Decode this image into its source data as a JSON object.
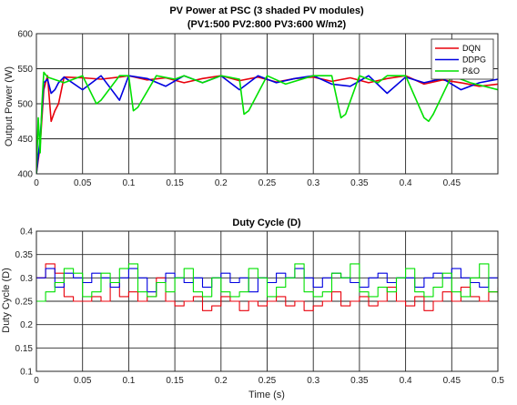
{
  "colors": {
    "dqn": "#e8000b",
    "ddpg": "#0000e0",
    "po": "#00e000",
    "grid": "#262626"
  },
  "chart_data": [
    {
      "type": "line",
      "title": "PV Power at PSC (3 shaded PV modules)",
      "subtitle": "(PV1:500 PV2:800 PV3:600 W/m2)",
      "xlabel": "",
      "ylabel": "Output Power (W)",
      "xlim": [
        0,
        0.5
      ],
      "ylim": [
        400,
        600
      ],
      "xticks": [
        "0",
        "0.05",
        "0.1",
        "0.15",
        "0.2",
        "0.25",
        "0.3",
        "0.35",
        "0.4",
        "0.45"
      ],
      "yticks": [
        "400",
        "450",
        "500",
        "550",
        "600"
      ],
      "grid": true,
      "legend": {
        "position": "top-right",
        "entries": [
          "DQN",
          "DDPG",
          "P&O"
        ]
      },
      "series": [
        {
          "name": "DQN",
          "color": "dqn",
          "x": [
            0,
            0.004,
            0.008,
            0.012,
            0.016,
            0.02,
            0.024,
            0.03,
            0.05,
            0.07,
            0.09,
            0.1,
            0.12,
            0.14,
            0.16,
            0.18,
            0.2,
            0.22,
            0.24,
            0.26,
            0.28,
            0.3,
            0.32,
            0.34,
            0.36,
            0.38,
            0.4,
            0.42,
            0.44,
            0.46,
            0.48,
            0.5
          ],
          "values": [
            400,
            440,
            520,
            540,
            475,
            490,
            500,
            538,
            537,
            535,
            538,
            540,
            534,
            537,
            530,
            536,
            540,
            533,
            538,
            531,
            536,
            538,
            532,
            537,
            530,
            536,
            540,
            528,
            534,
            530,
            525,
            528
          ]
        },
        {
          "name": "DDPG",
          "color": "ddpg",
          "x": [
            0,
            0.004,
            0.008,
            0.012,
            0.016,
            0.02,
            0.024,
            0.03,
            0.05,
            0.07,
            0.09,
            0.1,
            0.12,
            0.14,
            0.16,
            0.18,
            0.2,
            0.22,
            0.24,
            0.26,
            0.28,
            0.3,
            0.32,
            0.34,
            0.36,
            0.38,
            0.4,
            0.42,
            0.44,
            0.46,
            0.48,
            0.5
          ],
          "values": [
            400,
            450,
            530,
            535,
            515,
            520,
            530,
            538,
            520,
            540,
            505,
            540,
            536,
            525,
            540,
            530,
            540,
            520,
            540,
            530,
            536,
            540,
            528,
            525,
            540,
            515,
            538,
            530,
            536,
            520,
            530,
            535
          ]
        },
        {
          "name": "P&O",
          "color": "po",
          "x": [
            0,
            0.002,
            0.004,
            0.006,
            0.008,
            0.012,
            0.03,
            0.05,
            0.065,
            0.07,
            0.09,
            0.1,
            0.105,
            0.11,
            0.13,
            0.15,
            0.16,
            0.18,
            0.2,
            0.22,
            0.225,
            0.23,
            0.25,
            0.27,
            0.3,
            0.32,
            0.33,
            0.335,
            0.35,
            0.37,
            0.38,
            0.4,
            0.42,
            0.425,
            0.43,
            0.45,
            0.47,
            0.5
          ],
          "values": [
            400,
            480,
            430,
            500,
            545,
            538,
            530,
            540,
            500,
            505,
            540,
            540,
            490,
            495,
            540,
            535,
            540,
            530,
            540,
            535,
            485,
            490,
            540,
            528,
            540,
            540,
            480,
            485,
            540,
            530,
            540,
            540,
            480,
            475,
            485,
            540,
            530,
            520
          ]
        }
      ]
    },
    {
      "type": "line",
      "title": "Duty Cycle (D)",
      "xlabel": "Time (s)",
      "ylabel": "Duty Cycle (D)",
      "xlim": [
        0,
        0.5
      ],
      "ylim": [
        0.1,
        0.4
      ],
      "xticks": [
        "0",
        "0.05",
        "0.1",
        "0.15",
        "0.2",
        "0.25",
        "0.3",
        "0.35",
        "0.4",
        "0.45",
        "0.5"
      ],
      "yticks": [
        "0.1",
        "0.15",
        "0.2",
        "0.25",
        "0.3",
        "0.35",
        "0.4"
      ],
      "grid": true,
      "series": [
        {
          "name": "DQN",
          "color": "dqn",
          "x": [
            0,
            0.01,
            0.02,
            0.03,
            0.04,
            0.05,
            0.06,
            0.07,
            0.08,
            0.09,
            0.1,
            0.11,
            0.12,
            0.13,
            0.14,
            0.15,
            0.16,
            0.17,
            0.18,
            0.19,
            0.2,
            0.21,
            0.22,
            0.23,
            0.24,
            0.25,
            0.26,
            0.27,
            0.28,
            0.29,
            0.3,
            0.31,
            0.32,
            0.33,
            0.34,
            0.35,
            0.36,
            0.37,
            0.38,
            0.39,
            0.4,
            0.41,
            0.42,
            0.43,
            0.44,
            0.45,
            0.46,
            0.47,
            0.48,
            0.49,
            0.5
          ],
          "values": [
            0.3,
            0.33,
            0.31,
            0.26,
            0.25,
            0.25,
            0.26,
            0.25,
            0.29,
            0.26,
            0.27,
            0.25,
            0.26,
            0.3,
            0.25,
            0.24,
            0.25,
            0.26,
            0.23,
            0.24,
            0.26,
            0.25,
            0.23,
            0.25,
            0.24,
            0.25,
            0.26,
            0.24,
            0.25,
            0.23,
            0.24,
            0.25,
            0.27,
            0.24,
            0.25,
            0.26,
            0.24,
            0.25,
            0.28,
            0.25,
            0.24,
            0.26,
            0.23,
            0.25,
            0.27,
            0.25,
            0.28,
            0.26,
            0.25,
            0.27,
            0.28
          ]
        },
        {
          "name": "DDPG",
          "color": "ddpg",
          "x": [
            0,
            0.01,
            0.02,
            0.03,
            0.04,
            0.05,
            0.06,
            0.07,
            0.08,
            0.09,
            0.1,
            0.11,
            0.12,
            0.13,
            0.14,
            0.15,
            0.16,
            0.17,
            0.18,
            0.19,
            0.2,
            0.21,
            0.22,
            0.23,
            0.24,
            0.25,
            0.26,
            0.27,
            0.28,
            0.29,
            0.3,
            0.31,
            0.32,
            0.33,
            0.34,
            0.35,
            0.36,
            0.37,
            0.38,
            0.39,
            0.4,
            0.41,
            0.42,
            0.43,
            0.44,
            0.45,
            0.46,
            0.47,
            0.48,
            0.49,
            0.5
          ],
          "values": [
            0.3,
            0.32,
            0.28,
            0.31,
            0.3,
            0.29,
            0.31,
            0.3,
            0.28,
            0.3,
            0.32,
            0.3,
            0.27,
            0.29,
            0.31,
            0.3,
            0.29,
            0.3,
            0.28,
            0.3,
            0.31,
            0.29,
            0.3,
            0.27,
            0.3,
            0.29,
            0.31,
            0.3,
            0.32,
            0.3,
            0.28,
            0.3,
            0.31,
            0.3,
            0.29,
            0.28,
            0.3,
            0.31,
            0.29,
            0.3,
            0.3,
            0.28,
            0.3,
            0.31,
            0.3,
            0.32,
            0.3,
            0.29,
            0.28,
            0.3,
            0.3
          ]
        },
        {
          "name": "P&O",
          "color": "po",
          "x": [
            0,
            0.01,
            0.02,
            0.03,
            0.04,
            0.05,
            0.06,
            0.07,
            0.08,
            0.09,
            0.1,
            0.11,
            0.12,
            0.13,
            0.14,
            0.15,
            0.16,
            0.17,
            0.18,
            0.19,
            0.2,
            0.21,
            0.22,
            0.23,
            0.24,
            0.25,
            0.26,
            0.27,
            0.28,
            0.29,
            0.3,
            0.31,
            0.32,
            0.33,
            0.34,
            0.35,
            0.36,
            0.37,
            0.38,
            0.39,
            0.4,
            0.41,
            0.42,
            0.43,
            0.44,
            0.45,
            0.46,
            0.47,
            0.48,
            0.49,
            0.5
          ],
          "values": [
            0.25,
            0.27,
            0.29,
            0.32,
            0.31,
            0.26,
            0.27,
            0.31,
            0.29,
            0.32,
            0.33,
            0.27,
            0.26,
            0.29,
            0.27,
            0.3,
            0.32,
            0.27,
            0.26,
            0.3,
            0.27,
            0.26,
            0.27,
            0.32,
            0.3,
            0.26,
            0.28,
            0.3,
            0.33,
            0.27,
            0.26,
            0.27,
            0.31,
            0.3,
            0.33,
            0.27,
            0.26,
            0.28,
            0.27,
            0.3,
            0.32,
            0.27,
            0.26,
            0.28,
            0.31,
            0.27,
            0.26,
            0.3,
            0.33,
            0.27,
            0.26
          ]
        }
      ]
    }
  ]
}
